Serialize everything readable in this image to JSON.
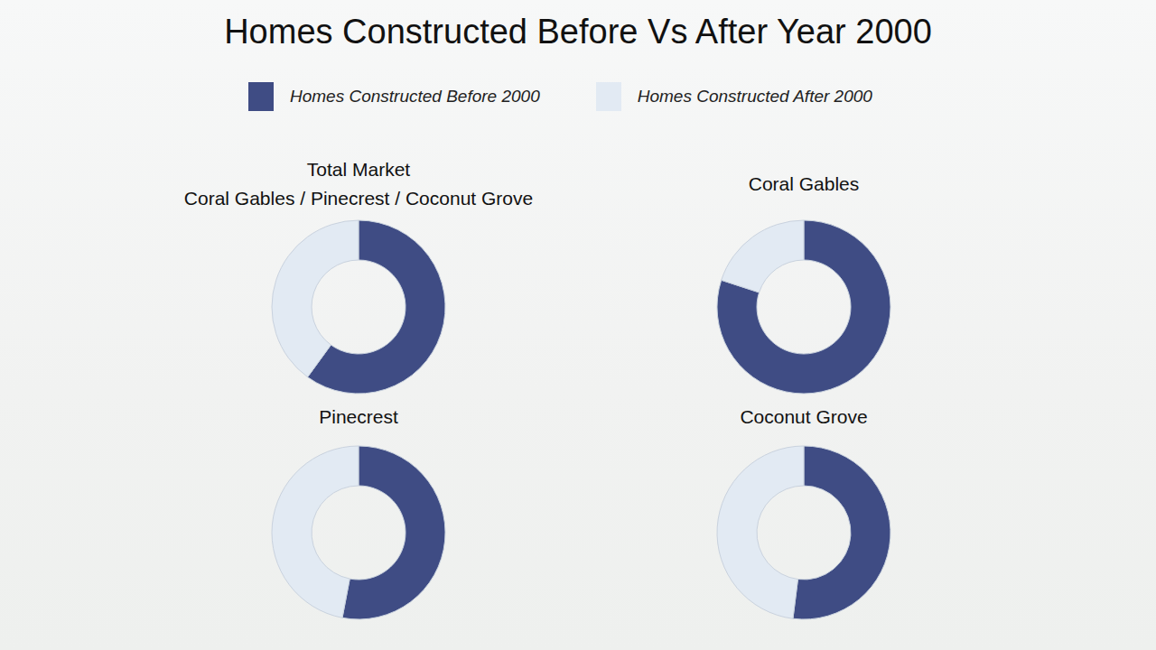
{
  "title": "Homes Constructed Before Vs After Year 2000",
  "chart_data": [
    {
      "type": "pie",
      "title": "Total Market",
      "subtitle": "Coral Gables / Pinecrest / Coconut Grove",
      "categories": [
        "Homes Constructed Before 2000",
        "Homes Constructed After 2000"
      ],
      "values": [
        60,
        40
      ],
      "colors": [
        "#3f4c84",
        "#e2eaf3"
      ]
    },
    {
      "type": "pie",
      "title": "Coral Gables",
      "categories": [
        "Homes Constructed Before 2000",
        "Homes Constructed After 2000"
      ],
      "values": [
        80,
        20
      ],
      "colors": [
        "#3f4c84",
        "#e2eaf3"
      ]
    },
    {
      "type": "pie",
      "title": "Pinecrest",
      "categories": [
        "Homes Constructed Before 2000",
        "Homes Constructed After 2000"
      ],
      "values": [
        53,
        47
      ],
      "colors": [
        "#3f4c84",
        "#e2eaf3"
      ]
    },
    {
      "type": "pie",
      "title": "Coconut Grove",
      "categories": [
        "Homes Constructed Before 2000",
        "Homes Constructed After 2000"
      ],
      "values": [
        52,
        48
      ],
      "colors": [
        "#3f4c84",
        "#e2eaf3"
      ]
    }
  ]
}
